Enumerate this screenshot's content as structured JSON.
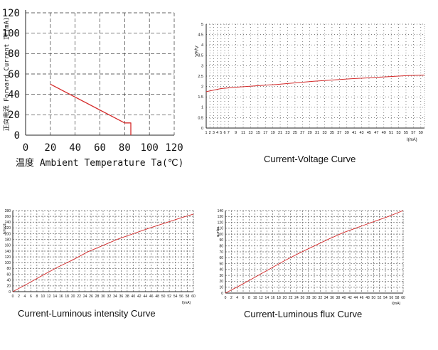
{
  "chart_data": [
    {
      "type": "line",
      "title": "",
      "ylabel": "正向电流 Forward Current IF(mA)",
      "xlabel": "温度 Ambient Temperature Ta(℃)",
      "xlim": [
        0,
        120
      ],
      "ylim": [
        0,
        120
      ],
      "xticks": [
        0,
        20,
        40,
        60,
        80,
        100,
        120
      ],
      "yticks": [
        0,
        20,
        40,
        60,
        80,
        100,
        120
      ],
      "grid": "dashed",
      "series": [
        {
          "x": [
            20,
            80,
            85,
            85
          ],
          "y": [
            50,
            12,
            12,
            0
          ]
        }
      ]
    },
    {
      "type": "line",
      "title": "Current-Voltage Curve",
      "ylabel": "VF/V",
      "xlabel": "I(mA)",
      "xlim": [
        1,
        60
      ],
      "ylim": [
        0,
        5
      ],
      "xticks": [
        1,
        2,
        3,
        4,
        5,
        6,
        7,
        9,
        11,
        13,
        15,
        17,
        19,
        21,
        23,
        25,
        27,
        29,
        31,
        33,
        35,
        37,
        39,
        41,
        43,
        45,
        47,
        49,
        51,
        53,
        55,
        57,
        59
      ],
      "yticks": [
        0,
        0.5,
        1,
        1.5,
        2,
        2.5,
        3,
        3.5,
        4,
        4.5,
        5
      ],
      "grid": "dotted",
      "series": [
        {
          "x": [
            1,
            5,
            10,
            20,
            30,
            40,
            50,
            55,
            60
          ],
          "y": [
            1.75,
            1.9,
            1.98,
            2.1,
            2.25,
            2.37,
            2.47,
            2.52,
            2.55
          ]
        }
      ]
    },
    {
      "type": "line",
      "title": "Current-Luminous intensity Curve",
      "ylabel": "Iv/mcd",
      "xlabel": "I(mA)",
      "xlim": [
        0,
        60
      ],
      "ylim": [
        0,
        280
      ],
      "xticks": [
        0,
        2,
        4,
        6,
        8,
        10,
        12,
        14,
        16,
        18,
        20,
        22,
        24,
        26,
        28,
        30,
        32,
        34,
        36,
        38,
        40,
        42,
        44,
        46,
        48,
        50,
        52,
        54,
        56,
        58,
        60
      ],
      "yticks": [
        0,
        20,
        40,
        60,
        80,
        100,
        120,
        140,
        160,
        180,
        200,
        220,
        240,
        260,
        280
      ],
      "grid": "dashed",
      "series": [
        {
          "x": [
            0,
            5,
            10,
            15,
            20,
            25,
            30,
            35,
            40,
            45,
            50,
            55,
            60
          ],
          "y": [
            0,
            28,
            57,
            85,
            110,
            138,
            160,
            182,
            200,
            218,
            235,
            252,
            268
          ]
        }
      ]
    },
    {
      "type": "line",
      "title": "Current-Luminous flux Curve",
      "ylabel": "φ mlm",
      "xlabel": "I(mA)",
      "xlim": [
        0,
        60
      ],
      "ylim": [
        0,
        140
      ],
      "xticks": [
        0,
        2,
        4,
        6,
        8,
        10,
        12,
        14,
        16,
        18,
        20,
        22,
        24,
        26,
        28,
        30,
        32,
        34,
        36,
        38,
        40,
        42,
        44,
        46,
        48,
        50,
        52,
        54,
        56,
        58,
        60
      ],
      "yticks": [
        0,
        10,
        20,
        30,
        40,
        50,
        60,
        70,
        80,
        90,
        100,
        110,
        120,
        130,
        140
      ],
      "grid": "dashed",
      "series": [
        {
          "x": [
            0,
            5,
            10,
            15,
            20,
            25,
            30,
            35,
            40,
            45,
            50,
            55,
            60
          ],
          "y": [
            0,
            13,
            27,
            41,
            55,
            68,
            80,
            92,
            103,
            112,
            121,
            130,
            140
          ]
        }
      ]
    }
  ]
}
